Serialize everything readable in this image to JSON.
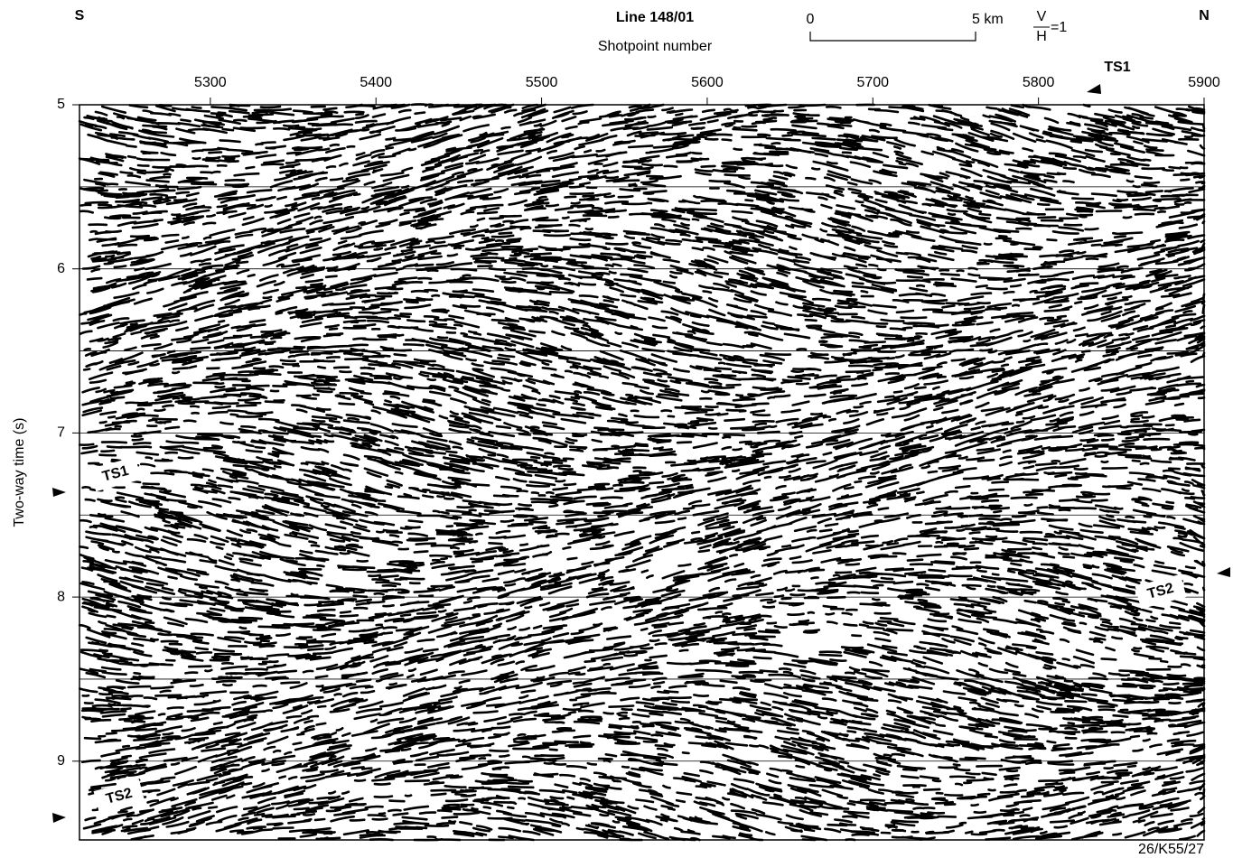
{
  "chart_data": {
    "type": "seismic-section",
    "title": "Line 148/01",
    "x_label": "Shotpoint number",
    "y_label": "Two-way time (s)",
    "xlim": [
      5221,
      5900
    ],
    "xticks": [
      5300,
      5400,
      5500,
      5600,
      5700,
      5800,
      5900
    ],
    "ylim": [
      5,
      9.48
    ],
    "yticks": [
      5,
      6,
      7,
      8,
      9
    ],
    "grid_lines": [
      5.5,
      6,
      6.5,
      7,
      7.5,
      8,
      8.5,
      9
    ],
    "direction_labels": [
      "S",
      "N"
    ],
    "scale_bar": {
      "labels": [
        "0",
        "5 km"
      ]
    },
    "vh_ratio": {
      "numerator": "V",
      "denominator": "H",
      "equals": "=1"
    },
    "annotations": [
      "TS1",
      "TS1",
      "TS2",
      "TS2"
    ],
    "figure_id": "26/K55/27"
  }
}
